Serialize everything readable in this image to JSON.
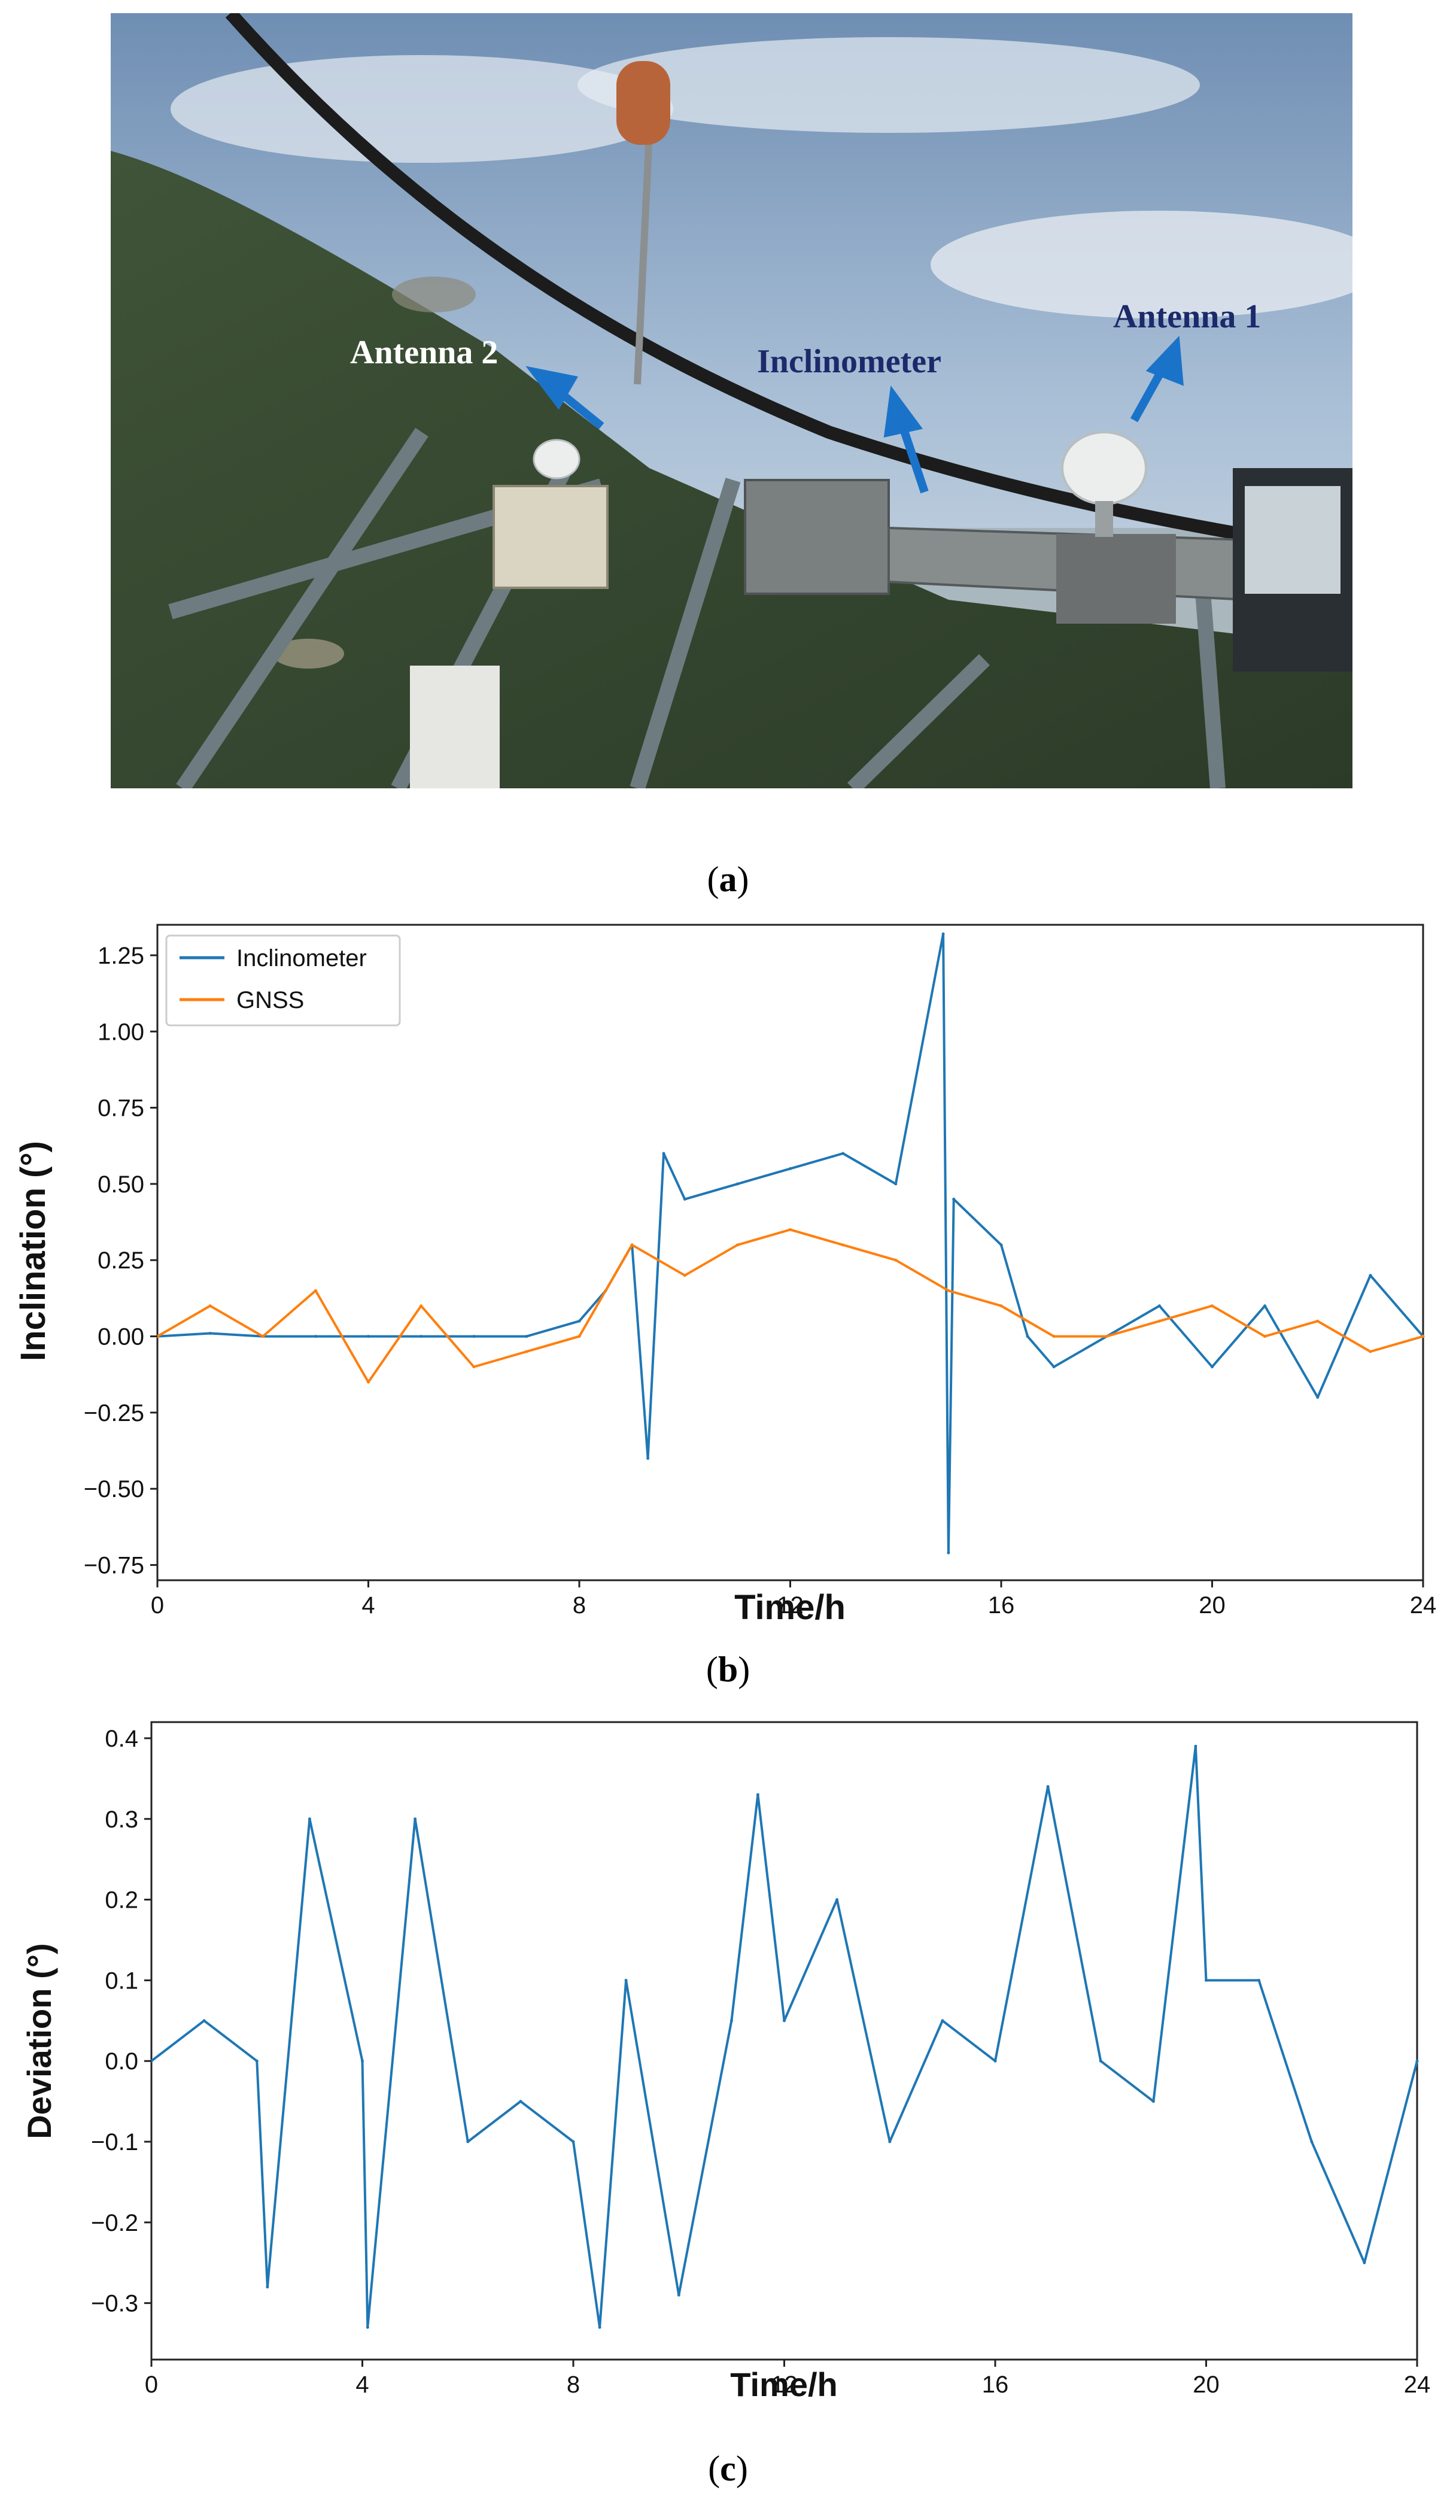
{
  "colors": {
    "inclinometer": "#1f77b4",
    "gnss": "#ff7f0e",
    "label_white": "#ffffff",
    "label_navy": "#1c2a6b",
    "arrow": "#1a73c9"
  },
  "photo": {
    "labels": {
      "antenna2": "Antenna 2",
      "inclinometer": "Inclinometer",
      "antenna1": "Antenna 1"
    }
  },
  "captions": {
    "a": "a",
    "b": "b",
    "c": "c"
  },
  "chart_data": [
    {
      "type": "line",
      "panel": "b",
      "xlabel": "Time/h",
      "ylabel": "Inclination (°)",
      "xlim": [
        0,
        24
      ],
      "ylim": [
        -0.8,
        1.35
      ],
      "xticks": [
        "0",
        "4",
        "8",
        "12",
        "16",
        "20",
        "24"
      ],
      "yticks": [
        "1.25",
        "1.00",
        "0.75",
        "0.50",
        "0.25",
        "0.00",
        "−0.25",
        "−0.50",
        "−0.75"
      ],
      "legend_position": "top-left",
      "series": [
        {
          "name": "Inclinometer",
          "x": [
            0,
            1,
            2,
            3,
            4,
            5,
            6,
            7,
            8,
            8.5,
            9,
            9.3,
            9.6,
            10,
            11,
            12,
            13,
            14,
            14.9,
            15,
            15.1,
            16,
            16.5,
            17,
            18,
            19,
            20,
            21,
            22,
            23,
            24
          ],
          "y": [
            0.0,
            0.01,
            0.0,
            0.0,
            0.0,
            0.0,
            0.0,
            0.0,
            0.05,
            0.15,
            0.3,
            -0.4,
            0.6,
            0.45,
            0.5,
            0.55,
            0.6,
            0.5,
            1.32,
            -0.71,
            0.45,
            0.3,
            0.0,
            -0.1,
            0.0,
            0.1,
            -0.1,
            0.1,
            -0.2,
            0.2,
            0.0
          ]
        },
        {
          "name": "GNSS",
          "x": [
            0,
            1,
            2,
            3,
            4,
            5,
            6,
            7,
            8,
            9,
            10,
            11,
            12,
            13,
            14,
            15,
            16,
            17,
            18,
            19,
            20,
            21,
            22,
            23,
            24
          ],
          "y": [
            0.0,
            0.1,
            0.0,
            0.15,
            -0.15,
            0.1,
            -0.1,
            -0.05,
            0.0,
            0.3,
            0.2,
            0.3,
            0.35,
            0.3,
            0.25,
            0.15,
            0.1,
            0.0,
            0.0,
            0.05,
            0.1,
            0.0,
            0.05,
            -0.05,
            0.0
          ]
        }
      ]
    },
    {
      "type": "line",
      "panel": "c",
      "xlabel": "Time/h",
      "ylabel": "Deviation (°)",
      "xlim": [
        0,
        24
      ],
      "ylim": [
        -0.37,
        0.42
      ],
      "xticks": [
        "0",
        "4",
        "8",
        "12",
        "16",
        "20",
        "24"
      ],
      "yticks": [
        "0.4",
        "0.3",
        "0.2",
        "0.1",
        "0.0",
        "−0.1",
        "−0.2",
        "−0.3"
      ],
      "series": [
        {
          "name": "",
          "x": [
            0,
            1,
            2,
            2.2,
            3,
            4,
            4.1,
            5,
            6,
            7,
            8,
            8.5,
            9,
            10,
            11,
            11.5,
            12,
            13,
            14,
            15,
            16,
            17,
            18,
            19,
            19.8,
            20,
            21,
            22,
            23,
            24
          ],
          "y": [
            0.0,
            0.05,
            0.0,
            -0.28,
            0.3,
            0.0,
            -0.33,
            0.3,
            -0.1,
            -0.05,
            -0.1,
            -0.33,
            0.1,
            -0.29,
            0.05,
            0.33,
            0.05,
            0.2,
            -0.1,
            0.05,
            0.0,
            0.34,
            0.0,
            -0.05,
            0.39,
            0.1,
            0.1,
            -0.1,
            -0.25,
            0.0
          ]
        }
      ]
    }
  ]
}
